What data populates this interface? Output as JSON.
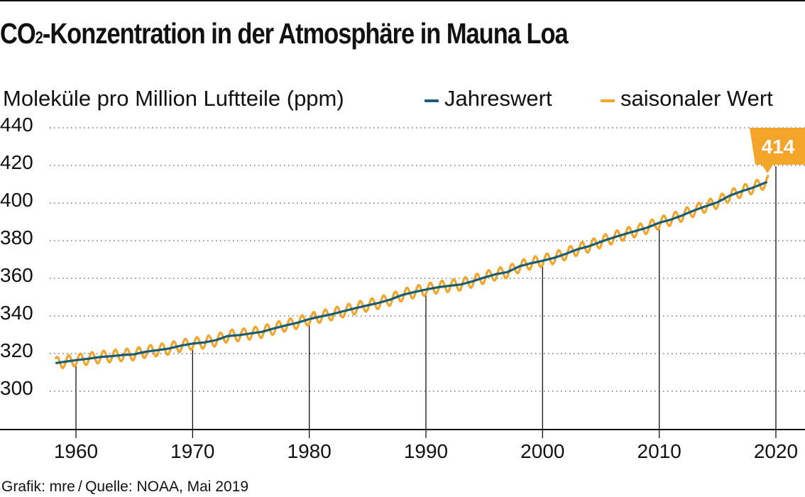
{
  "title": {
    "main_a": "CO",
    "sub": "2",
    "main_b": "-Konzentration in der Atmosphäre in Mauna Loa"
  },
  "colors": {
    "annual": "#175d74",
    "seasonal": "#f2a42b",
    "axis": "#111111",
    "grid": "#555555"
  },
  "chart_data": {
    "type": "line",
    "ylabel": "Moleküle pro Million Luftteile (ppm)",
    "xlim": [
      1958,
      2021
    ],
    "ylim": [
      290,
      440
    ],
    "xticks": [
      "1960",
      "1970",
      "1980",
      "1990",
      "2000",
      "2010",
      "2020"
    ],
    "yticks": [
      "440",
      "420",
      "400",
      "380",
      "360",
      "340",
      "320",
      "300"
    ],
    "grid": "horizontal dotted",
    "legend_position": "top-right",
    "series": [
      {
        "name": "Jahreswert",
        "x": [
          1958.25,
          1959,
          1960,
          1961,
          1962,
          1963,
          1964,
          1965,
          1966,
          1967,
          1968,
          1969,
          1970,
          1971,
          1972,
          1973,
          1974,
          1975,
          1976,
          1977,
          1978,
          1979,
          1980,
          1981,
          1982,
          1983,
          1984,
          1985,
          1986,
          1987,
          1988,
          1989,
          1990,
          1991,
          1992,
          1993,
          1994,
          1995,
          1996,
          1997,
          1998,
          1999,
          2000,
          2001,
          2002,
          2003,
          2004,
          2005,
          2006,
          2007,
          2008,
          2009,
          2010,
          2011,
          2012,
          2013,
          2014,
          2015,
          2016,
          2017,
          2018,
          2019.4
        ],
        "y": [
          315.3,
          316.0,
          316.9,
          317.6,
          318.5,
          319.0,
          319.6,
          320.0,
          321.4,
          322.2,
          323.1,
          324.6,
          325.7,
          326.3,
          327.5,
          329.7,
          330.2,
          331.1,
          332.0,
          333.8,
          335.4,
          336.8,
          338.7,
          340.1,
          341.4,
          343.0,
          344.6,
          346.0,
          347.4,
          349.2,
          351.6,
          353.1,
          354.4,
          355.6,
          356.4,
          357.1,
          358.8,
          360.8,
          362.6,
          363.7,
          366.7,
          368.4,
          369.7,
          371.3,
          373.4,
          375.8,
          377.5,
          379.8,
          381.9,
          383.8,
          385.6,
          387.4,
          389.9,
          391.6,
          393.9,
          396.5,
          398.7,
          400.8,
          404.2,
          406.5,
          408.5,
          412.0
        ]
      },
      {
        "name": "saisonaler Wert",
        "amplitude": 3.2,
        "peak_month": 5,
        "last_value": 414
      }
    ],
    "annotations": [
      {
        "x": 2019.4,
        "y": 414,
        "label": "414"
      }
    ]
  },
  "footer": "Grafik: mre / Quelle: NOAA, Mai 2019"
}
